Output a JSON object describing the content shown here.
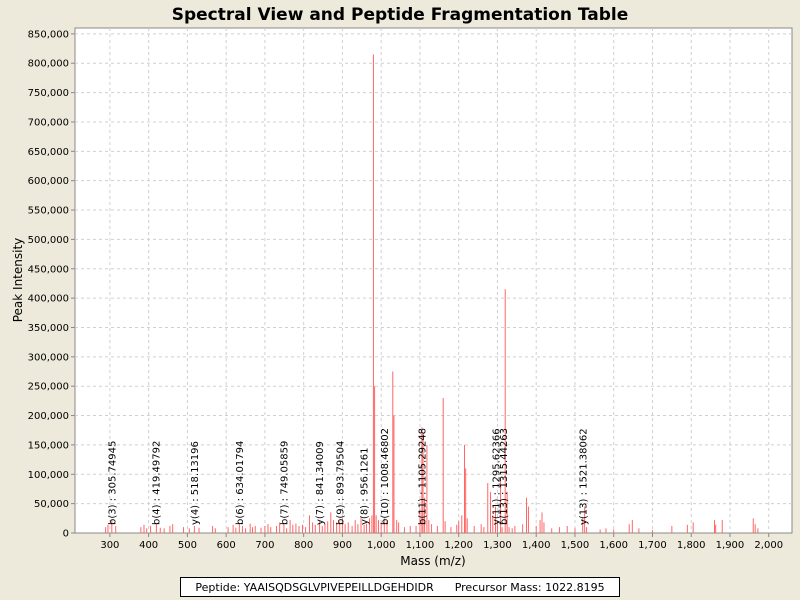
{
  "chart_data": {
    "type": "bar",
    "title": "Spectral View and Peptide Fragmentation Table",
    "xlabel": "Mass (m/z)",
    "ylabel": "Peak Intensity",
    "xlim": [
      210,
      2060
    ],
    "ylim": [
      0,
      860000
    ],
    "x_ticks": [
      300,
      400,
      500,
      600,
      700,
      800,
      900,
      1000,
      1100,
      1200,
      1300,
      1400,
      1500,
      1600,
      1700,
      1800,
      1900,
      2000
    ],
    "x_tick_labels": [
      "300",
      "400",
      "500",
      "600",
      "700",
      "800",
      "900",
      "1,000",
      "1,100",
      "1,200",
      "1,300",
      "1,400",
      "1,500",
      "1,600",
      "1,700",
      "1,800",
      "1,900",
      "2,000"
    ],
    "y_ticks": [
      0,
      50000,
      100000,
      150000,
      200000,
      250000,
      300000,
      350000,
      400000,
      450000,
      500000,
      550000,
      600000,
      650000,
      700000,
      750000,
      800000,
      850000
    ],
    "y_tick_labels": [
      "0",
      "50,000",
      "100,000",
      "150,000",
      "200,000",
      "250,000",
      "300,000",
      "350,000",
      "400,000",
      "450,000",
      "500,000",
      "550,000",
      "600,000",
      "650,000",
      "700,000",
      "750,000",
      "800,000",
      "850,000"
    ],
    "grid": true,
    "series": [
      {
        "color": "#ff6666",
        "peaks": [
          [
            289,
            10000
          ],
          [
            295,
            14000
          ],
          [
            305,
            22000
          ],
          [
            315,
            12000
          ],
          [
            380,
            10000
          ],
          [
            388,
            14000
          ],
          [
            395,
            8000
          ],
          [
            405,
            12000
          ],
          [
            420,
            16000
          ],
          [
            430,
            9000
          ],
          [
            440,
            8000
          ],
          [
            455,
            12000
          ],
          [
            462,
            15000
          ],
          [
            490,
            10000
          ],
          [
            505,
            8000
          ],
          [
            518,
            12000
          ],
          [
            530,
            9000
          ],
          [
            565,
            12000
          ],
          [
            572,
            8000
          ],
          [
            605,
            10000
          ],
          [
            618,
            14000
          ],
          [
            625,
            9000
          ],
          [
            634,
            15000
          ],
          [
            642,
            12000
          ],
          [
            650,
            8000
          ],
          [
            662,
            16000
          ],
          [
            668,
            10000
          ],
          [
            675,
            12000
          ],
          [
            690,
            9000
          ],
          [
            700,
            12000
          ],
          [
            708,
            15000
          ],
          [
            715,
            10000
          ],
          [
            730,
            12000
          ],
          [
            738,
            18000
          ],
          [
            749,
            16000
          ],
          [
            756,
            8000
          ],
          [
            765,
            22000
          ],
          [
            772,
            14000
          ],
          [
            780,
            16000
          ],
          [
            788,
            12000
          ],
          [
            797,
            14000
          ],
          [
            805,
            10000
          ],
          [
            815,
            30000
          ],
          [
            823,
            18000
          ],
          [
            830,
            14000
          ],
          [
            841,
            20000
          ],
          [
            848,
            12000
          ],
          [
            855,
            16000
          ],
          [
            862,
            20000
          ],
          [
            870,
            35000
          ],
          [
            877,
            22000
          ],
          [
            885,
            18000
          ],
          [
            893,
            20000
          ],
          [
            900,
            25000
          ],
          [
            907,
            15000
          ],
          [
            915,
            18000
          ],
          [
            925,
            12000
          ],
          [
            933,
            22000
          ],
          [
            940,
            15000
          ],
          [
            948,
            28000
          ],
          [
            956,
            14000
          ],
          [
            962,
            16000
          ],
          [
            970,
            25000
          ],
          [
            976,
            30000
          ],
          [
            980,
            815000
          ],
          [
            983,
            250000
          ],
          [
            987,
            30000
          ],
          [
            993,
            22000
          ],
          [
            1000,
            18000
          ],
          [
            1008,
            25000
          ],
          [
            1015,
            20000
          ],
          [
            1030,
            275000
          ],
          [
            1033,
            200000
          ],
          [
            1040,
            22000
          ],
          [
            1045,
            18000
          ],
          [
            1060,
            10000
          ],
          [
            1075,
            12000
          ],
          [
            1090,
            12000
          ],
          [
            1100,
            40000
          ],
          [
            1105,
            180000
          ],
          [
            1108,
            170000
          ],
          [
            1112,
            60000
          ],
          [
            1118,
            150000
          ],
          [
            1123,
            22000
          ],
          [
            1130,
            15000
          ],
          [
            1145,
            12000
          ],
          [
            1160,
            230000
          ],
          [
            1165,
            20000
          ],
          [
            1180,
            10000
          ],
          [
            1195,
            14000
          ],
          [
            1200,
            20000
          ],
          [
            1208,
            30000
          ],
          [
            1215,
            150000
          ],
          [
            1218,
            110000
          ],
          [
            1222,
            25000
          ],
          [
            1240,
            12000
          ],
          [
            1258,
            15000
          ],
          [
            1265,
            10000
          ],
          [
            1275,
            85000
          ],
          [
            1282,
            70000
          ],
          [
            1288,
            30000
          ],
          [
            1295,
            45000
          ],
          [
            1300,
            20000
          ],
          [
            1308,
            90000
          ],
          [
            1312,
            10000
          ],
          [
            1320,
            415000
          ],
          [
            1325,
            70000
          ],
          [
            1330,
            10000
          ],
          [
            1338,
            8000
          ],
          [
            1345,
            12000
          ],
          [
            1365,
            15000
          ],
          [
            1375,
            60000
          ],
          [
            1380,
            45000
          ],
          [
            1400,
            12000
          ],
          [
            1410,
            22000
          ],
          [
            1415,
            35000
          ],
          [
            1420,
            18000
          ],
          [
            1440,
            8000
          ],
          [
            1460,
            10000
          ],
          [
            1480,
            12000
          ],
          [
            1500,
            8000
          ],
          [
            1520,
            25000
          ],
          [
            1525,
            45000
          ],
          [
            1530,
            10000
          ],
          [
            1565,
            6000
          ],
          [
            1580,
            8000
          ],
          [
            1600,
            6000
          ],
          [
            1640,
            15000
          ],
          [
            1648,
            22000
          ],
          [
            1665,
            8000
          ],
          [
            1700,
            5000
          ],
          [
            1750,
            12000
          ],
          [
            1790,
            14000
          ],
          [
            1805,
            18000
          ],
          [
            1860,
            22000
          ],
          [
            1863,
            14000
          ],
          [
            1880,
            22000
          ],
          [
            1960,
            25000
          ],
          [
            1965,
            15000
          ],
          [
            1972,
            8000
          ]
        ]
      }
    ],
    "annotations": [
      {
        "x": 305.74945,
        "text": "b(3) : 305.74945"
      },
      {
        "x": 419.49792,
        "text": "b(4) : 419.49792"
      },
      {
        "x": 518.13196,
        "text": "y(4) : 518.13196"
      },
      {
        "x": 634.01794,
        "text": "b(6) : 634.01794"
      },
      {
        "x": 749.05859,
        "text": "b(7) : 749.05859"
      },
      {
        "x": 841.34009,
        "text": "y(7) : 841.34009"
      },
      {
        "x": 893.79504,
        "text": "b(9) : 893.79504"
      },
      {
        "x": 956.1261,
        "text": "y(8) : 956.1261"
      },
      {
        "x": 1008.46802,
        "text": "b(10) : 1008.46802"
      },
      {
        "x": 1105.29248,
        "text": "b(11) : 1105.29248"
      },
      {
        "x": 1295.62366,
        "text": "y(11) : 1295.62366"
      },
      {
        "x": 1315.44263,
        "text": "b(13) : 1315.44263"
      },
      {
        "x": 1521.38062,
        "text": "y(13) : 1521.38062"
      }
    ]
  },
  "info": {
    "peptide": "Peptide: YAAISQDSGLVPIVEPEILLDGEHDIDR",
    "precursor": "Precursor Mass: 1022.8195"
  }
}
